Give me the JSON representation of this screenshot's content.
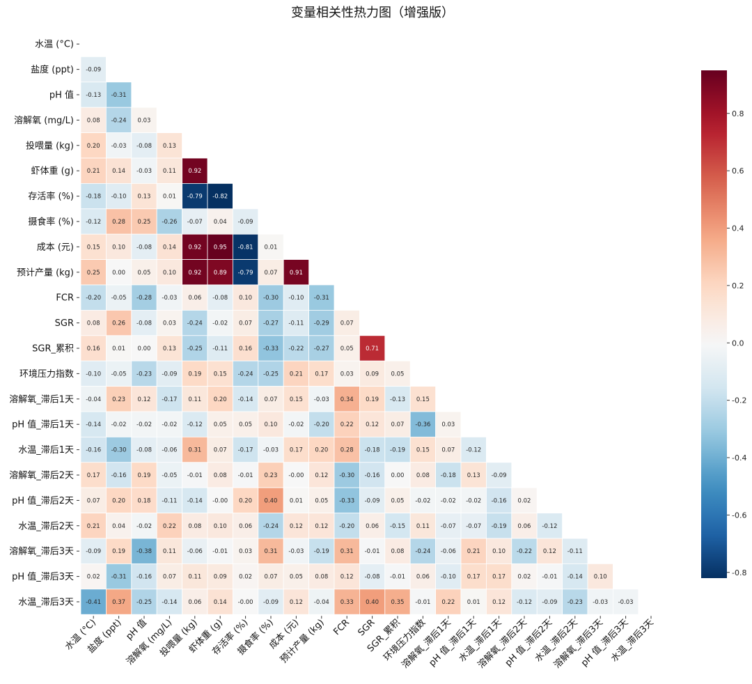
{
  "chart_data": {
    "type": "heatmap",
    "title": "变量相关性热力图（增强版）",
    "subtype": "lower-triangle correlation matrix",
    "variables": [
      "水温 (°C)",
      "盐度 (ppt)",
      "pH 值",
      "溶解氧 (mg/L)",
      "投喂量 (kg)",
      "虾体重 (g)",
      "存活率 (%)",
      "摄食率 (%)",
      "成本 (元)",
      "预计产量 (kg)",
      "FCR",
      "SGR",
      "SGR_累积",
      "环境压力指数",
      "溶解氧_滞后1天",
      "pH 值_滞后1天",
      "水温_滞后1天",
      "溶解氧_滞后2天",
      "pH 值_滞后2天",
      "水温_滞后2天",
      "溶解氧_滞后3天",
      "pH 值_滞后3天",
      "水温_滞后3天"
    ],
    "lower_triangle": [
      [],
      [
        "-0.09"
      ],
      [
        "-0.13",
        "-0.31"
      ],
      [
        "0.08",
        "-0.24",
        "0.03"
      ],
      [
        "0.20",
        "-0.03",
        "-0.08",
        "0.13"
      ],
      [
        "0.21",
        "0.14",
        "-0.03",
        "0.11",
        "0.92"
      ],
      [
        "-0.18",
        "-0.10",
        "0.13",
        "0.01",
        "-0.79",
        "-0.82"
      ],
      [
        "-0.12",
        "0.28",
        "0.25",
        "-0.26",
        "-0.07",
        "0.04",
        "-0.09"
      ],
      [
        "0.15",
        "0.10",
        "-0.08",
        "0.14",
        "0.92",
        "0.95",
        "-0.81",
        "0.01"
      ],
      [
        "0.25",
        "0.00",
        "0.05",
        "0.10",
        "0.92",
        "0.89",
        "-0.79",
        "0.07",
        "0.91"
      ],
      [
        "-0.20",
        "-0.05",
        "-0.28",
        "-0.03",
        "0.06",
        "-0.08",
        "0.10",
        "-0.30",
        "-0.10",
        "-0.31"
      ],
      [
        "0.08",
        "0.26",
        "-0.08",
        "0.03",
        "-0.24",
        "-0.02",
        "0.07",
        "-0.27",
        "-0.11",
        "-0.29",
        "0.07"
      ],
      [
        "0.16",
        "0.01",
        "0.00",
        "0.13",
        "-0.25",
        "-0.11",
        "0.16",
        "-0.33",
        "-0.22",
        "-0.27",
        "0.05",
        "0.71"
      ],
      [
        "-0.10",
        "-0.05",
        "-0.23",
        "-0.09",
        "0.19",
        "0.15",
        "-0.24",
        "-0.25",
        "0.21",
        "0.17",
        "0.03",
        "0.09",
        "0.05"
      ],
      [
        "-0.04",
        "0.23",
        "0.12",
        "-0.17",
        "0.11",
        "0.20",
        "-0.14",
        "0.07",
        "0.15",
        "-0.03",
        "0.34",
        "0.19",
        "-0.13",
        "0.15"
      ],
      [
        "-0.14",
        "-0.02",
        "-0.02",
        "-0.02",
        "-0.12",
        "0.05",
        "0.05",
        "0.10",
        "-0.02",
        "-0.20",
        "0.22",
        "0.12",
        "0.07",
        "-0.36",
        "0.03"
      ],
      [
        "-0.16",
        "-0.30",
        "-0.08",
        "-0.06",
        "0.31",
        "0.07",
        "-0.17",
        "-0.03",
        "0.17",
        "0.20",
        "0.28",
        "-0.18",
        "-0.19",
        "0.15",
        "0.07",
        "-0.12"
      ],
      [
        "0.17",
        "-0.16",
        "0.19",
        "-0.05",
        "-0.01",
        "0.08",
        "-0.01",
        "0.23",
        "-0.00",
        "0.12",
        "-0.30",
        "-0.16",
        "0.00",
        "0.08",
        "-0.18",
        "0.13",
        "-0.09"
      ],
      [
        "0.07",
        "0.20",
        "0.18",
        "-0.11",
        "-0.14",
        "-0.00",
        "0.20",
        "0.40",
        "0.01",
        "0.05",
        "-0.33",
        "-0.09",
        "0.05",
        "-0.02",
        "-0.02",
        "-0.02",
        "-0.16",
        "0.02"
      ],
      [
        "0.21",
        "0.04",
        "-0.02",
        "0.22",
        "0.08",
        "0.10",
        "0.06",
        "-0.24",
        "0.12",
        "0.12",
        "-0.20",
        "0.06",
        "-0.15",
        "0.11",
        "-0.07",
        "-0.07",
        "-0.19",
        "0.06",
        "-0.12"
      ],
      [
        "-0.09",
        "0.19",
        "-0.38",
        "0.11",
        "-0.06",
        "-0.01",
        "0.03",
        "0.31",
        "-0.03",
        "-0.19",
        "0.31",
        "-0.01",
        "0.08",
        "-0.24",
        "-0.06",
        "0.21",
        "0.10",
        "-0.22",
        "0.12",
        "-0.11"
      ],
      [
        "0.02",
        "-0.31",
        "-0.16",
        "0.07",
        "0.11",
        "0.09",
        "0.02",
        "0.07",
        "0.05",
        "0.08",
        "0.12",
        "-0.08",
        "-0.01",
        "0.06",
        "-0.10",
        "0.17",
        "0.17",
        "0.02",
        "-0.01",
        "-0.14",
        "0.10"
      ],
      [
        "-0.41",
        "0.37",
        "-0.25",
        "-0.14",
        "0.06",
        "0.14",
        "-0.00",
        "-0.09",
        "0.12",
        "-0.04",
        "0.33",
        "0.40",
        "0.35",
        "-0.01",
        "0.22",
        "0.01",
        "0.12",
        "-0.12",
        "-0.09",
        "-0.23",
        "-0.03",
        "-0.03"
      ]
    ],
    "colormap": "RdBu_r",
    "vmin": -0.82,
    "vmax": 0.95,
    "colorbar": {
      "ticks": [
        0.8,
        0.6,
        0.4,
        0.2,
        0.0,
        -0.2,
        -0.4,
        -0.6,
        -0.8
      ],
      "tick_labels": [
        "0.8",
        "0.6",
        "0.4",
        "0.2",
        "0.0",
        "-0.2",
        "-0.4",
        "-0.6",
        "-0.8"
      ],
      "position": "right"
    },
    "annotations": true
  }
}
